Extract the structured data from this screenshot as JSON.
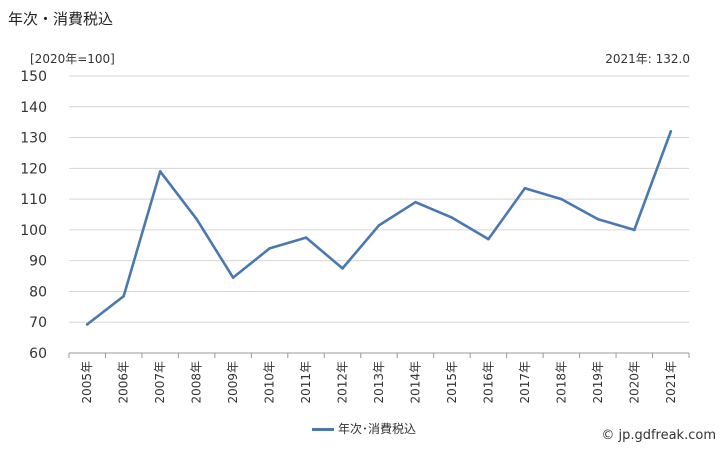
{
  "title": "年次・消費税込",
  "unit_label": "[2020年=100]",
  "latest_label": "2021年: 132.0",
  "credit": "© jp.gdfreak.com",
  "chart_data": {
    "type": "line",
    "title": "年次・消費税込",
    "ylabel": "[2020年=100]",
    "ylim": [
      60,
      150
    ],
    "yticks": [
      60,
      70,
      80,
      90,
      100,
      110,
      120,
      130,
      140,
      150
    ],
    "grid": true,
    "legend_position": "bottom",
    "categories": [
      "2005年",
      "2006年",
      "2007年",
      "2008年",
      "2009年",
      "2010年",
      "2011年",
      "2012年",
      "2013年",
      "2014年",
      "2015年",
      "2016年",
      "2017年",
      "2018年",
      "2019年",
      "2020年",
      "2021年"
    ],
    "series": [
      {
        "name": "年次･消費税込",
        "color": "#4a78b0",
        "values": [
          69.3,
          78.5,
          119.0,
          103.5,
          84.5,
          94.0,
          97.5,
          87.5,
          101.5,
          109.0,
          104.0,
          97.0,
          113.5,
          110.0,
          103.5,
          100.0,
          132.0
        ]
      }
    ]
  }
}
